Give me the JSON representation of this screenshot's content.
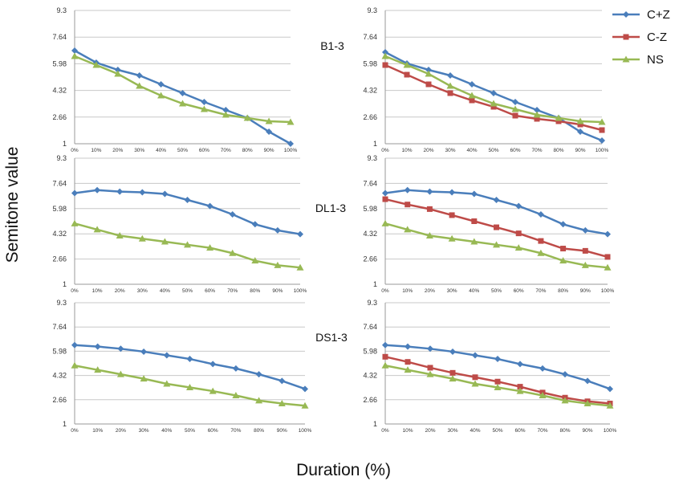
{
  "figure": {
    "ylabel": "Semitone value",
    "xlabel": "Duration (%)",
    "legend": [
      {
        "name": "C+Z",
        "color": "#4a7ebb",
        "marker": "diamond"
      },
      {
        "name": "C-Z",
        "color": "#be4b48",
        "marker": "square"
      },
      {
        "name": "NS",
        "color": "#98b954",
        "marker": "triangle"
      }
    ]
  },
  "chart_data": [
    {
      "type": "line",
      "label": "B1-3",
      "x": [
        "0%",
        "10%",
        "20%",
        "30%",
        "40%",
        "50%",
        "60%",
        "70%",
        "80%",
        "90%",
        "100%"
      ],
      "yticks": [
        "1",
        "2.66",
        "4.32",
        "5.98",
        "7.64",
        "9.3"
      ],
      "ylim": [
        1,
        9.3
      ],
      "grid": true,
      "series": [
        {
          "name": "C+Z",
          "color": "#4a7ebb",
          "marker": "diamond",
          "values": [
            6.8,
            6.05,
            5.6,
            5.25,
            4.7,
            4.15,
            3.6,
            3.1,
            2.6,
            1.75,
            1.0
          ]
        },
        {
          "name": "NS",
          "color": "#98b954",
          "marker": "triangle",
          "values": [
            6.45,
            5.9,
            5.35,
            4.6,
            4.0,
            3.5,
            3.15,
            2.8,
            2.6,
            2.4,
            2.35
          ]
        }
      ]
    },
    {
      "type": "line",
      "label": "",
      "x": [
        "0%",
        "10%",
        "20%",
        "30%",
        "40%",
        "50%",
        "60%",
        "70%",
        "80%",
        "90%",
        "100%"
      ],
      "yticks": [
        "1",
        "2.66",
        "4.32",
        "5.98",
        "7.64",
        "9.3"
      ],
      "ylim": [
        1,
        9.3
      ],
      "grid": true,
      "series": [
        {
          "name": "C+Z",
          "color": "#4a7ebb",
          "marker": "diamond",
          "values": [
            6.7,
            6.0,
            5.6,
            5.25,
            4.7,
            4.15,
            3.6,
            3.1,
            2.6,
            1.75,
            1.2
          ]
        },
        {
          "name": "C-Z",
          "color": "#be4b48",
          "marker": "square",
          "values": [
            5.9,
            5.3,
            4.7,
            4.15,
            3.7,
            3.3,
            2.75,
            2.55,
            2.4,
            2.2,
            1.85
          ]
        },
        {
          "name": "NS",
          "color": "#98b954",
          "marker": "triangle",
          "values": [
            6.45,
            5.9,
            5.35,
            4.6,
            4.0,
            3.5,
            3.15,
            2.8,
            2.6,
            2.4,
            2.35
          ]
        }
      ]
    },
    {
      "type": "line",
      "label": "DL1-3",
      "x": [
        "0%",
        "10%",
        "20%",
        "30%",
        "40%",
        "50%",
        "60%",
        "70%",
        "80%",
        "90%",
        "100%"
      ],
      "yticks": [
        "1",
        "2.66",
        "4.32",
        "5.98",
        "7.64",
        "9.3"
      ],
      "ylim": [
        1,
        9.3
      ],
      "grid": true,
      "series": [
        {
          "name": "C+Z",
          "color": "#4a7ebb",
          "marker": "diamond",
          "values": [
            7.0,
            7.2,
            7.1,
            7.05,
            6.95,
            6.55,
            6.15,
            5.6,
            4.95,
            4.55,
            4.3
          ]
        },
        {
          "name": "NS",
          "color": "#98b954",
          "marker": "triangle",
          "values": [
            5.0,
            4.6,
            4.2,
            4.0,
            3.8,
            3.6,
            3.4,
            3.05,
            2.55,
            2.25,
            2.1
          ]
        }
      ]
    },
    {
      "type": "line",
      "label": "",
      "x": [
        "0%",
        "10%",
        "20%",
        "30%",
        "40%",
        "50%",
        "60%",
        "70%",
        "80%",
        "90%",
        "100%"
      ],
      "yticks": [
        "1",
        "2.66",
        "4.32",
        "5.98",
        "7.64",
        "9.3"
      ],
      "ylim": [
        1,
        9.3
      ],
      "grid": true,
      "series": [
        {
          "name": "C+Z",
          "color": "#4a7ebb",
          "marker": "diamond",
          "values": [
            7.0,
            7.2,
            7.1,
            7.05,
            6.95,
            6.55,
            6.15,
            5.6,
            4.95,
            4.55,
            4.3
          ]
        },
        {
          "name": "C-Z",
          "color": "#be4b48",
          "marker": "square",
          "values": [
            6.6,
            6.25,
            5.95,
            5.55,
            5.15,
            4.75,
            4.35,
            3.85,
            3.35,
            3.2,
            2.8
          ]
        },
        {
          "name": "NS",
          "color": "#98b954",
          "marker": "triangle",
          "values": [
            5.0,
            4.6,
            4.2,
            4.0,
            3.8,
            3.6,
            3.4,
            3.05,
            2.55,
            2.25,
            2.1
          ]
        }
      ]
    },
    {
      "type": "line",
      "label": "DS1-3",
      "x": [
        "0%",
        "10%",
        "20%",
        "30%",
        "40%",
        "50%",
        "60%",
        "70%",
        "80%",
        "90%",
        "100%"
      ],
      "yticks": [
        "1",
        "2.66",
        "4.32",
        "5.98",
        "7.64",
        "9.3"
      ],
      "ylim": [
        1,
        9.3
      ],
      "grid": true,
      "series": [
        {
          "name": "C+Z",
          "color": "#4a7ebb",
          "marker": "diamond",
          "values": [
            6.4,
            6.3,
            6.15,
            5.95,
            5.7,
            5.45,
            5.1,
            4.8,
            4.4,
            3.95,
            3.4
          ]
        },
        {
          "name": "NS",
          "color": "#98b954",
          "marker": "triangle",
          "values": [
            5.0,
            4.7,
            4.4,
            4.1,
            3.75,
            3.5,
            3.25,
            2.95,
            2.6,
            2.4,
            2.25
          ]
        }
      ]
    },
    {
      "type": "line",
      "label": "",
      "x": [
        "0%",
        "10%",
        "20%",
        "30%",
        "40%",
        "50%",
        "60%",
        "70%",
        "80%",
        "90%",
        "100%"
      ],
      "yticks": [
        "1",
        "2.66",
        "4.32",
        "5.98",
        "7.64",
        "9.3"
      ],
      "ylim": [
        1,
        9.3
      ],
      "grid": true,
      "series": [
        {
          "name": "C+Z",
          "color": "#4a7ebb",
          "marker": "diamond",
          "values": [
            6.4,
            6.3,
            6.15,
            5.95,
            5.7,
            5.45,
            5.1,
            4.8,
            4.4,
            3.95,
            3.4
          ]
        },
        {
          "name": "C-Z",
          "color": "#be4b48",
          "marker": "square",
          "values": [
            5.6,
            5.25,
            4.85,
            4.5,
            4.2,
            3.9,
            3.55,
            3.15,
            2.8,
            2.55,
            2.4
          ]
        },
        {
          "name": "NS",
          "color": "#98b954",
          "marker": "triangle",
          "values": [
            5.0,
            4.7,
            4.4,
            4.1,
            3.75,
            3.5,
            3.25,
            2.95,
            2.6,
            2.4,
            2.25
          ]
        }
      ]
    }
  ]
}
